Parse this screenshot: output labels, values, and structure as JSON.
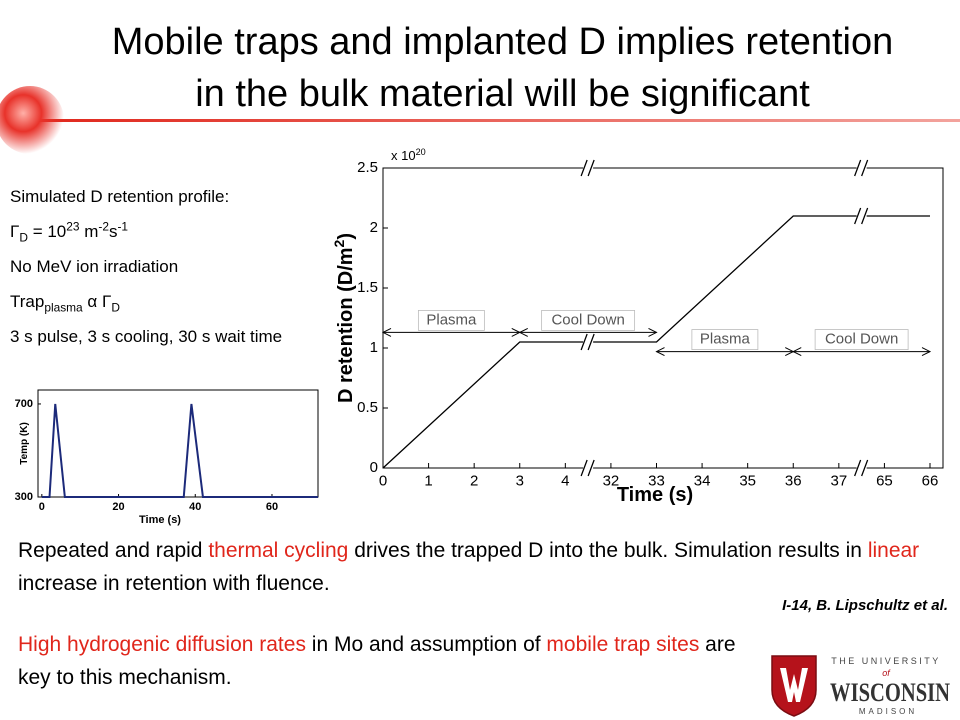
{
  "title": [
    "Mobile traps and implanted D implies retention",
    "in the bulk material will be significant"
  ],
  "notes": [
    [
      {
        "text": "Simulated D retention profile:"
      }
    ],
    [
      {
        "text": "Γ"
      },
      {
        "text": "D",
        "script": "sub"
      },
      {
        "text": " = 10"
      },
      {
        "text": "23",
        "script": "sup"
      },
      {
        "text": " m"
      },
      {
        "text": "-2",
        "script": "sup"
      },
      {
        "text": "s"
      },
      {
        "text": "-1",
        "script": "sup"
      }
    ],
    [
      {
        "text": "No MeV ion irradiation"
      }
    ],
    [
      {
        "text": "Trap"
      },
      {
        "text": "plasma",
        "script": "sub"
      },
      {
        "text": "  α  Γ"
      },
      {
        "text": "D",
        "script": "sub"
      }
    ],
    [
      {
        "text": "3 s pulse, 3 s cooling, 30 s wait time"
      }
    ]
  ],
  "chart_data": [
    {
      "type": "line",
      "x": [
        0,
        3,
        33,
        36,
        66
      ],
      "values": [
        0,
        1.05,
        1.05,
        2.1,
        2.1
      ],
      "color": "#000000",
      "xlim": [
        0,
        66
      ],
      "xticks": [
        0,
        1,
        2,
        3,
        4,
        32,
        33,
        34,
        35,
        36,
        37,
        65,
        66
      ],
      "axis_breaks": [
        [
          4,
          32
        ],
        [
          37,
          65
        ]
      ],
      "ylim": [
        0,
        2.5
      ],
      "yticks": [
        0,
        0.5,
        1,
        1.5,
        2,
        2.5
      ],
      "y_multiplier": [
        {
          "text": "x 10"
        },
        {
          "text": "20",
          "script": "sup"
        }
      ],
      "ylabel": [
        {
          "text": "D retention (D/m"
        },
        {
          "text": "2",
          "script": "sup"
        },
        {
          "text": ")"
        }
      ],
      "xlabel": "Time (s)",
      "annotations": [
        {
          "text": "Plasma",
          "x": [
            0,
            3
          ],
          "y": 1.13
        },
        {
          "text": "Cool Down",
          "x": [
            3,
            33
          ],
          "y": 1.13
        },
        {
          "text": "Plasma",
          "x": [
            33,
            36
          ],
          "y": 0.97
        },
        {
          "text": "Cool Down",
          "x": [
            36,
            66
          ],
          "y": 0.97
        }
      ]
    },
    {
      "type": "line",
      "x": [
        0,
        2,
        3.5,
        6,
        37,
        39,
        42,
        72
      ],
      "values": [
        300,
        300,
        700,
        300,
        300,
        700,
        300,
        300
      ],
      "color": "#1c2a7a",
      "xlim": [
        -1,
        72
      ],
      "xticks": [
        0,
        20,
        40,
        60
      ],
      "ylim": [
        300,
        760
      ],
      "yticks": [
        300,
        700
      ],
      "xlabel": "Time (s)",
      "ylabel": [
        {
          "text": "Temp (K)"
        }
      ]
    }
  ],
  "paragraphs": [
    [
      {
        "text": "Repeated and rapid "
      },
      {
        "text": "thermal cycling",
        "color": "#e0261b"
      },
      {
        "text": " drives the trapped D into the bulk. Simulation results in "
      },
      {
        "text": "linear",
        "color": "#e0261b"
      },
      {
        "text": " increase in retention with fluence."
      }
    ],
    [
      {
        "text": "High hydrogenic diffusion rates",
        "color": "#e0261b"
      },
      {
        "text": " in Mo and assumption of "
      },
      {
        "text": "mobile trap sites",
        "color": "#e0261b"
      },
      {
        "text": " are key to this mechanism."
      }
    ]
  ],
  "citation": "I-14, B. Lipschultz et al.",
  "logo": {
    "line1": "THE UNIVERSITY",
    "line2": "of",
    "name": "WISCONSIN",
    "campus": "MADISON"
  }
}
